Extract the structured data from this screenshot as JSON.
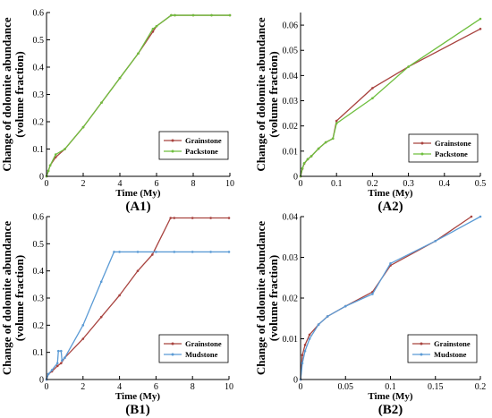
{
  "figure": {
    "background": "#ffffff"
  },
  "chart_data": [
    {
      "panel": "(A1)",
      "type": "line",
      "xlabel": "Time (My)",
      "ylabel": "Change of dolomite abundance",
      "ylabel2": "(volume fraction)",
      "xlim": [
        0,
        10
      ],
      "ylim": [
        0,
        0.6
      ],
      "xticks": [
        0,
        2,
        4,
        6,
        8,
        10
      ],
      "xtick_labels": [
        "0",
        "2",
        "4",
        "6",
        "8",
        "10"
      ],
      "yticks": [
        0,
        0.1,
        0.2,
        0.3,
        0.4,
        0.5,
        0.6
      ],
      "ytick_labels": [
        "0",
        "0.1",
        "0.2",
        "0.3",
        "0.4",
        "0.5",
        "0.6"
      ],
      "legend_position": "right-middle",
      "series": [
        {
          "name": "Grainstone",
          "color": "#a8433f",
          "x": [
            0,
            0.1,
            0.2,
            0.5,
            1,
            2,
            3,
            4,
            5,
            5.8,
            6,
            6.8,
            7,
            8,
            9,
            10
          ],
          "y": [
            0,
            0.02,
            0.04,
            0.07,
            0.1,
            0.18,
            0.27,
            0.36,
            0.45,
            0.53,
            0.55,
            0.59,
            0.59,
            0.59,
            0.59,
            0.59
          ]
        },
        {
          "name": "Packstone",
          "color": "#6fbf3f",
          "x": [
            0,
            0.1,
            0.2,
            0.5,
            1,
            2,
            3,
            4,
            5,
            5.8,
            6,
            6.8,
            7,
            8,
            9,
            10
          ],
          "y": [
            0,
            0.02,
            0.04,
            0.08,
            0.1,
            0.18,
            0.27,
            0.36,
            0.45,
            0.54,
            0.55,
            0.59,
            0.59,
            0.59,
            0.59,
            0.59
          ]
        }
      ]
    },
    {
      "panel": "(A2)",
      "type": "line",
      "xlabel": "Time (My)",
      "ylabel": "Change of dolomite abundance",
      "ylabel2": "(volume fraction)",
      "xlim": [
        0,
        0.5
      ],
      "ylim": [
        0,
        0.065
      ],
      "xticks": [
        0,
        0.1,
        0.2,
        0.3,
        0.4,
        0.5
      ],
      "xtick_labels": [
        "0",
        "0.1",
        "0.2",
        "0.3",
        "0.4",
        "0.5"
      ],
      "yticks": [
        0,
        0.01,
        0.02,
        0.03,
        0.04,
        0.05,
        0.06
      ],
      "ytick_labels": [
        "0",
        "0.01",
        "0.02",
        "0.03",
        "0.04",
        "0.05",
        "0.06"
      ],
      "legend_position": "right-middle",
      "series": [
        {
          "name": "Grainstone",
          "color": "#a8433f",
          "x": [
            0,
            0.005,
            0.01,
            0.02,
            0.03,
            0.05,
            0.07,
            0.09,
            0.1,
            0.2,
            0.3,
            0.5
          ],
          "y": [
            0,
            0.003,
            0.005,
            0.0068,
            0.008,
            0.011,
            0.0135,
            0.015,
            0.022,
            0.035,
            0.0435,
            0.0585
          ]
        },
        {
          "name": "Packstone",
          "color": "#6fbf3f",
          "x": [
            0,
            0.005,
            0.01,
            0.02,
            0.03,
            0.05,
            0.07,
            0.09,
            0.1,
            0.2,
            0.3,
            0.5
          ],
          "y": [
            0,
            0.0032,
            0.0052,
            0.0068,
            0.008,
            0.011,
            0.0135,
            0.015,
            0.021,
            0.031,
            0.0435,
            0.0625
          ]
        }
      ]
    },
    {
      "panel": "(B1)",
      "type": "line",
      "xlabel": "Time (My)",
      "ylabel": "Change of dolomite abundance",
      "ylabel2": "(volume fraction)",
      "xlim": [
        0,
        10
      ],
      "ylim": [
        0,
        0.6
      ],
      "xticks": [
        0,
        2,
        4,
        6,
        8,
        10
      ],
      "xtick_labels": [
        "0",
        "2",
        "4",
        "6",
        "8",
        "10"
      ],
      "yticks": [
        0,
        0.1,
        0.2,
        0.3,
        0.4,
        0.5,
        0.6
      ],
      "ytick_labels": [
        "0",
        "0.1",
        "0.2",
        "0.3",
        "0.4",
        "0.5",
        "0.6"
      ],
      "legend_position": "right-middle",
      "series": [
        {
          "name": "Grainstone",
          "color": "#a8433f",
          "x": [
            0,
            0.1,
            0.3,
            0.6,
            0.8,
            1,
            2,
            3,
            4,
            5,
            5.8,
            6.8,
            7,
            8,
            9,
            10
          ],
          "y": [
            0,
            0.02,
            0.03,
            0.05,
            0.06,
            0.08,
            0.15,
            0.23,
            0.31,
            0.4,
            0.46,
            0.595,
            0.595,
            0.595,
            0.595,
            0.595
          ]
        },
        {
          "name": "Mudstone",
          "color": "#5b9bd5",
          "x": [
            0,
            0.1,
            0.3,
            0.6,
            0.65,
            0.8,
            0.85,
            1,
            2,
            3,
            3.7,
            4,
            5,
            6,
            7,
            8,
            9,
            10
          ],
          "y": [
            0,
            0.02,
            0.035,
            0.06,
            0.105,
            0.105,
            0.07,
            0.08,
            0.2,
            0.36,
            0.47,
            0.47,
            0.47,
            0.47,
            0.47,
            0.47,
            0.47,
            0.47
          ]
        }
      ]
    },
    {
      "panel": "(B2)",
      "type": "line",
      "xlabel": "Time (My)",
      "ylabel": "Change of dolomite abundance",
      "ylabel2": "(volume fraction)",
      "xlim": [
        0,
        0.2
      ],
      "ylim": [
        0,
        0.04
      ],
      "xticks": [
        0,
        0.05,
        0.1,
        0.15,
        0.2
      ],
      "xtick_labels": [
        "0",
        "0.05",
        "0.1",
        "0.15",
        "0.2"
      ],
      "yticks": [
        0,
        0.01,
        0.02,
        0.03,
        0.04
      ],
      "ytick_labels": [
        "0",
        "0.01",
        "0.02",
        "0.03",
        "0.04"
      ],
      "legend_position": "right-middle",
      "series": [
        {
          "name": "Grainstone",
          "color": "#a8433f",
          "x": [
            0,
            0.002,
            0.005,
            0.01,
            0.02,
            0.03,
            0.05,
            0.08,
            0.1,
            0.15,
            0.19
          ],
          "y": [
            0,
            0.006,
            0.0085,
            0.011,
            0.0135,
            0.0155,
            0.018,
            0.0215,
            0.028,
            0.034,
            0.04
          ]
        },
        {
          "name": "Mudstone",
          "color": "#5b9bd5",
          "x": [
            0,
            0.002,
            0.005,
            0.01,
            0.02,
            0.03,
            0.05,
            0.08,
            0.1,
            0.15,
            0.2
          ],
          "y": [
            0,
            0.004,
            0.007,
            0.01,
            0.0135,
            0.0155,
            0.018,
            0.021,
            0.0285,
            0.034,
            0.04
          ]
        }
      ]
    }
  ]
}
